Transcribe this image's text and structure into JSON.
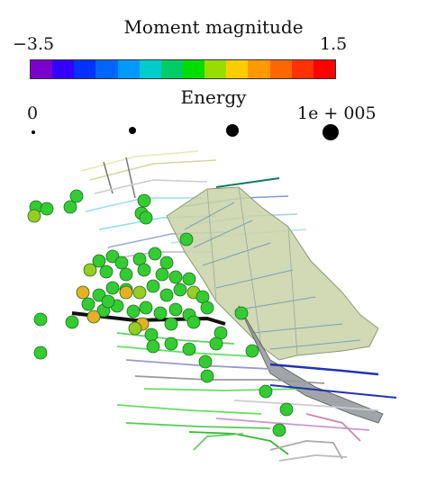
{
  "legend": {
    "moment_magnitude": {
      "title": "Moment magnitude",
      "min_label": "−3.5",
      "max_label": "1.5",
      "colors": [
        "#7a00cc",
        "#3300ff",
        "#0033ff",
        "#0066ff",
        "#0099ff",
        "#00cccc",
        "#00cc66",
        "#00dd00",
        "#99dd00",
        "#ffcc00",
        "#ff9900",
        "#ff6600",
        "#ff3300",
        "#ff0000"
      ]
    },
    "energy": {
      "title": "Energy",
      "min_label": "0",
      "max_label": "1e + 005",
      "dot_count": 4
    }
  },
  "scene": {
    "event_color": "#33cc33",
    "event_color_alt": "#99cc22",
    "event_color_high": "#e6b020",
    "fault_plane_color": "#c9d2a8",
    "tunnel_colors": [
      "#66dd66",
      "#88ddee",
      "#9999cc",
      "#2233aa",
      "#999999"
    ]
  }
}
